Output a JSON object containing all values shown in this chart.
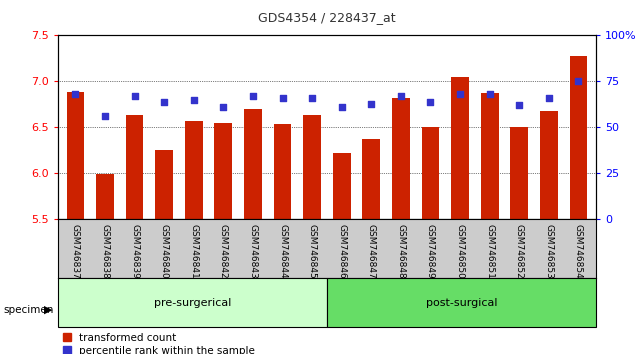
{
  "title": "GDS4354 / 228437_at",
  "samples": [
    "GSM746837",
    "GSM746838",
    "GSM746839",
    "GSM746840",
    "GSM746841",
    "GSM746842",
    "GSM746843",
    "GSM746844",
    "GSM746845",
    "GSM746846",
    "GSM746847",
    "GSM746848",
    "GSM746849",
    "GSM746850",
    "GSM746851",
    "GSM746852",
    "GSM746853",
    "GSM746854"
  ],
  "bar_values": [
    6.89,
    5.99,
    6.64,
    6.26,
    6.57,
    6.55,
    6.7,
    6.54,
    6.63,
    6.22,
    6.37,
    6.82,
    6.5,
    7.05,
    6.87,
    6.51,
    6.68,
    7.28
  ],
  "percentile_values": [
    68,
    56,
    67,
    64,
    65,
    61,
    67,
    66,
    66,
    61,
    63,
    67,
    64,
    68,
    68,
    62,
    66,
    75
  ],
  "ymin": 5.5,
  "ymax": 7.5,
  "yticks_left": [
    5.5,
    6.0,
    6.5,
    7.0,
    7.5
  ],
  "yticks_right": [
    0,
    25,
    50,
    75,
    100
  ],
  "bar_color": "#cc2200",
  "dot_color": "#3333cc",
  "pre_surgical_count": 9,
  "post_surgical_count": 9,
  "pre_label": "pre-surgerical",
  "post_label": "post-surgical",
  "specimen_label": "specimen",
  "legend1": "transformed count",
  "legend2": "percentile rank within the sample",
  "pre_color": "#ccffcc",
  "post_color": "#66dd66",
  "title_color": "#333333"
}
